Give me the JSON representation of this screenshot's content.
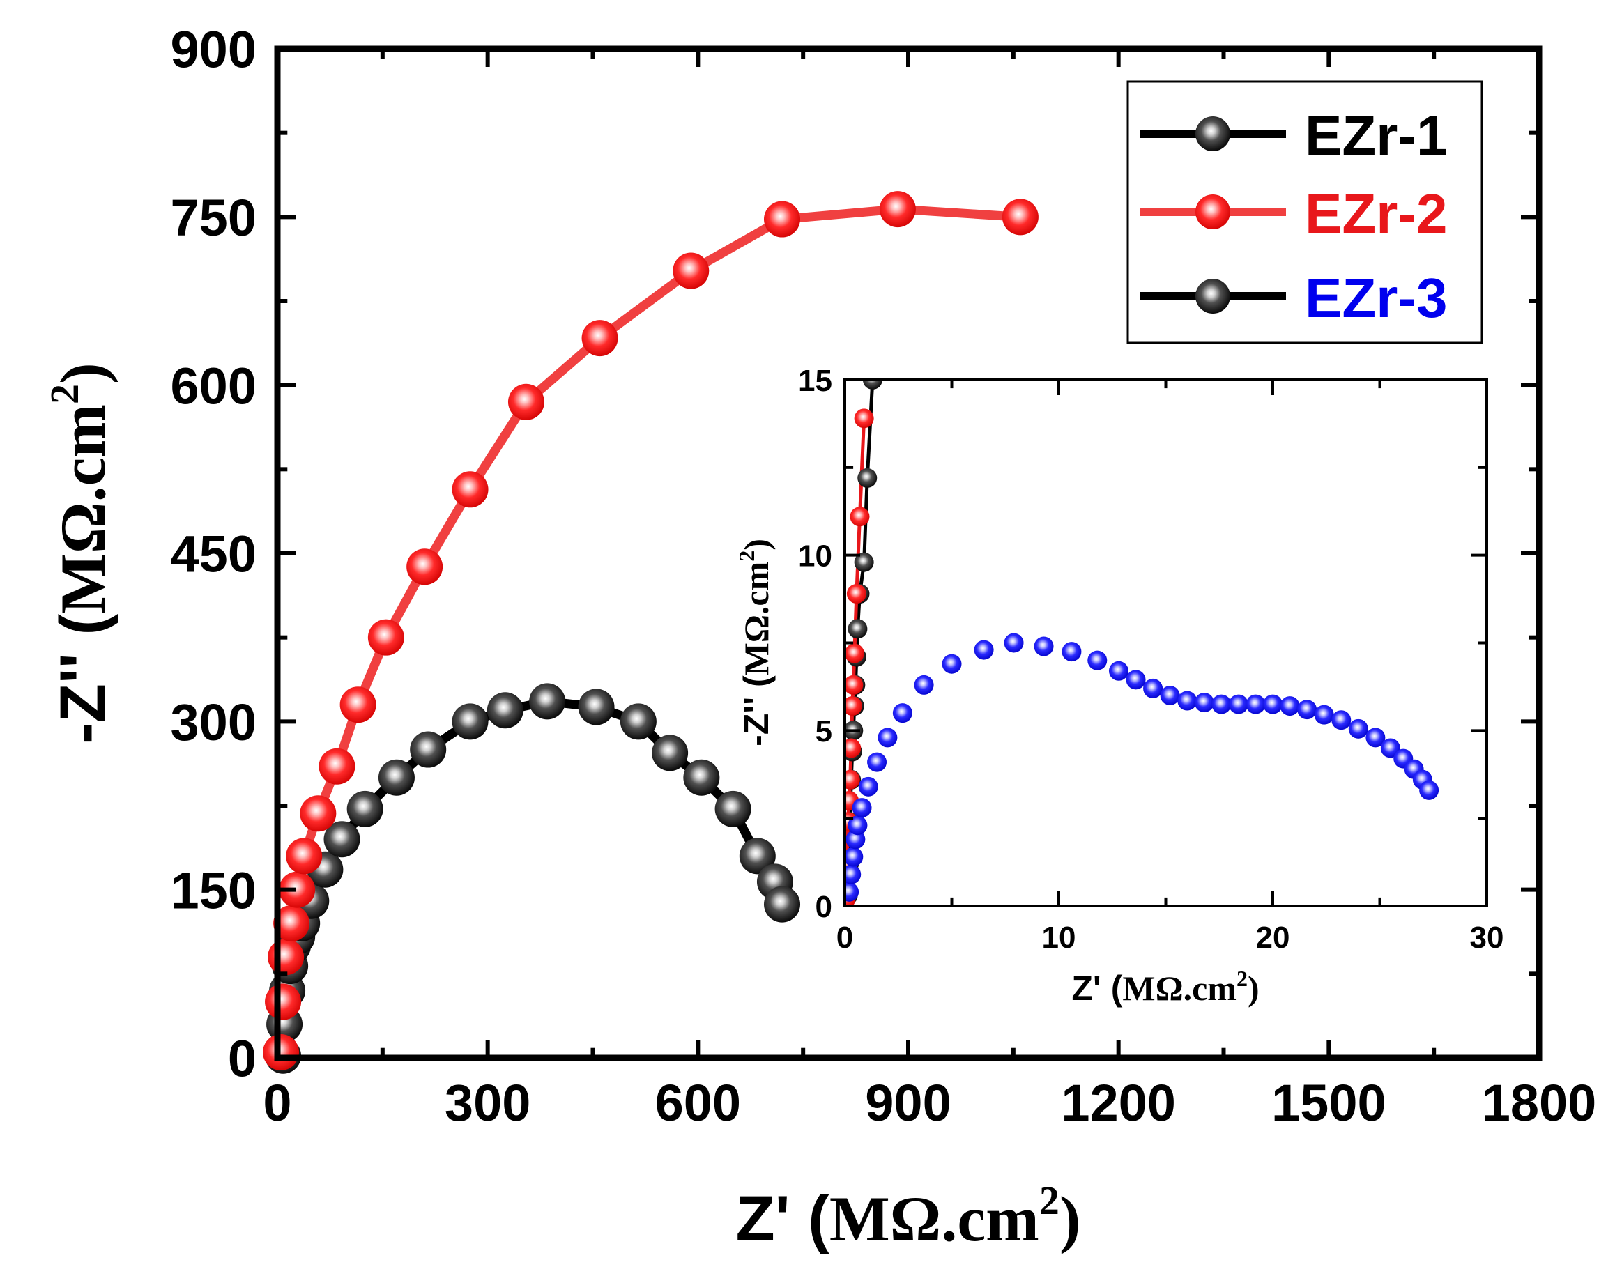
{
  "chart_data": [
    {
      "id": "main",
      "type": "scatter",
      "xlabel_prefix": "Z' (",
      "ylabel_prefix": "-Z'' (",
      "unit_base": "MΩ.cm",
      "unit_exp": "2",
      "label_suffix": ")",
      "xlim": [
        0,
        1800
      ],
      "ylim": [
        0,
        900
      ],
      "xticks": [
        "0",
        "300",
        "600",
        "900",
        "1200",
        "1500",
        "1800"
      ],
      "yticks": [
        "0",
        "150",
        "300",
        "450",
        "600",
        "750",
        "900"
      ],
      "legend_position": "top-right",
      "series": [
        {
          "name": "EZr-1",
          "color": "#000000",
          "label_color": "#000000",
          "line": true,
          "points": [
            [
              8,
              2
            ],
            [
              10,
              30
            ],
            [
              14,
              60
            ],
            [
              18,
              82
            ],
            [
              22,
              100
            ],
            [
              28,
              108
            ],
            [
              35,
              120
            ],
            [
              48,
              140
            ],
            [
              68,
              168
            ],
            [
              92,
              195
            ],
            [
              125,
              222
            ],
            [
              170,
              250
            ],
            [
              215,
              275
            ],
            [
              275,
              300
            ],
            [
              325,
              310
            ],
            [
              385,
              318
            ],
            [
              455,
              313
            ],
            [
              515,
              300
            ],
            [
              560,
              272
            ],
            [
              605,
              250
            ],
            [
              650,
              222
            ],
            [
              685,
              180
            ],
            [
              710,
              157
            ],
            [
              720,
              137
            ]
          ]
        },
        {
          "name": "EZr-2",
          "color": "#e8171b",
          "label_color": "#e8171b",
          "line_color": "#f04040",
          "line": true,
          "points": [
            [
              5,
              5
            ],
            [
              8,
              50
            ],
            [
              12,
              90
            ],
            [
              20,
              120
            ],
            [
              28,
              150
            ],
            [
              38,
              180
            ],
            [
              58,
              218
            ],
            [
              85,
              260
            ],
            [
              115,
              315
            ],
            [
              155,
              375
            ],
            [
              210,
              438
            ],
            [
              275,
              507
            ],
            [
              355,
              585
            ],
            [
              460,
              642
            ],
            [
              590,
              702
            ],
            [
              720,
              748
            ],
            [
              885,
              757
            ],
            [
              1060,
              750
            ]
          ]
        },
        {
          "name": "EZr-3",
          "color": "#0000ee",
          "label_color": "#0000ee",
          "legend_color": "#000000",
          "line": false,
          "points": []
        }
      ]
    },
    {
      "id": "inset",
      "type": "scatter",
      "xlabel_prefix": "Z' (",
      "ylabel_prefix": "-Z'' (",
      "unit_base": "MΩ.cm",
      "unit_exp": "2",
      "label_suffix": ")",
      "xlim": [
        0,
        30
      ],
      "ylim": [
        0,
        15
      ],
      "xticks": [
        "0",
        "10",
        "20",
        "30"
      ],
      "yticks": [
        "0",
        "5",
        "10",
        "15"
      ],
      "series": [
        {
          "name": "EZr-1",
          "color": "#000000",
          "line": true,
          "points": [
            [
              0.15,
              0.3
            ],
            [
              0.2,
              1.2
            ],
            [
              0.25,
              2.4
            ],
            [
              0.3,
              3.6
            ],
            [
              0.35,
              4.4
            ],
            [
              0.4,
              5.0
            ],
            [
              0.45,
              5.7
            ],
            [
              0.5,
              6.3
            ],
            [
              0.55,
              7.1
            ],
            [
              0.6,
              7.9
            ],
            [
              0.7,
              8.9
            ],
            [
              0.9,
              9.8
            ],
            [
              1.05,
              12.2
            ],
            [
              1.3,
              15.0
            ]
          ]
        },
        {
          "name": "EZr-2",
          "color": "#e8171b",
          "line_color": "#e8171b",
          "line": true,
          "points": [
            [
              0.05,
              0.2
            ],
            [
              0.1,
              1.2
            ],
            [
              0.15,
              2.4
            ],
            [
              0.2,
              3.0
            ],
            [
              0.25,
              3.6
            ],
            [
              0.3,
              4.5
            ],
            [
              0.35,
              5.7
            ],
            [
              0.4,
              6.3
            ],
            [
              0.45,
              7.2
            ],
            [
              0.55,
              8.9
            ],
            [
              0.7,
              11.1
            ],
            [
              0.9,
              13.9
            ]
          ]
        },
        {
          "name": "EZr-3",
          "color": "#0000ee",
          "line": false,
          "points": [
            [
              0.2,
              0.4
            ],
            [
              0.3,
              0.9
            ],
            [
              0.4,
              1.4
            ],
            [
              0.5,
              1.9
            ],
            [
              0.6,
              2.3
            ],
            [
              0.8,
              2.8
            ],
            [
              1.1,
              3.4
            ],
            [
              1.5,
              4.1
            ],
            [
              2.0,
              4.8
            ],
            [
              2.7,
              5.5
            ],
            [
              3.7,
              6.3
            ],
            [
              5.0,
              6.9
            ],
            [
              6.5,
              7.3
            ],
            [
              7.9,
              7.5
            ],
            [
              9.3,
              7.4
            ],
            [
              10.6,
              7.25
            ],
            [
              11.8,
              7.0
            ],
            [
              12.8,
              6.7
            ],
            [
              13.6,
              6.45
            ],
            [
              14.4,
              6.2
            ],
            [
              15.2,
              6.0
            ],
            [
              16.0,
              5.85
            ],
            [
              16.8,
              5.8
            ],
            [
              17.6,
              5.75
            ],
            [
              18.4,
              5.75
            ],
            [
              19.2,
              5.75
            ],
            [
              20.0,
              5.75
            ],
            [
              20.8,
              5.7
            ],
            [
              21.6,
              5.6
            ],
            [
              22.4,
              5.45
            ],
            [
              23.2,
              5.3
            ],
            [
              24.0,
              5.05
            ],
            [
              24.8,
              4.8
            ],
            [
              25.5,
              4.5
            ],
            [
              26.1,
              4.2
            ],
            [
              26.6,
              3.9
            ],
            [
              27.0,
              3.6
            ],
            [
              27.3,
              3.3
            ]
          ]
        }
      ]
    }
  ]
}
